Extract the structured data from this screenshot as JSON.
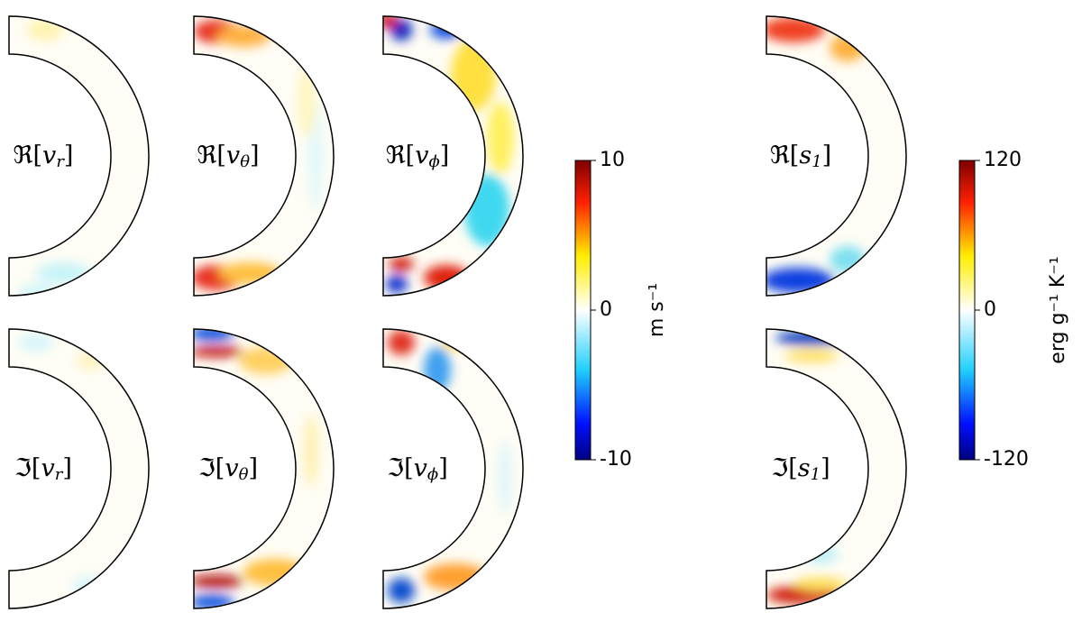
{
  "panels": [
    {
      "label": [
        "ℜ[",
        "v",
        "r",
        "]"
      ]
    },
    {
      "label": [
        "ℜ[",
        "v",
        "θ",
        "]"
      ]
    },
    {
      "label": [
        "ℜ[",
        "v",
        "ϕ",
        "]"
      ]
    },
    {
      "label": [
        "ℜ[",
        "s",
        "1",
        "]"
      ]
    },
    {
      "label": [
        "ℑ[",
        "v",
        "r",
        "]"
      ]
    },
    {
      "label": [
        "ℑ[",
        "v",
        "θ",
        "]"
      ]
    },
    {
      "label": [
        "ℑ[",
        "v",
        "ϕ",
        "]"
      ]
    },
    {
      "label": [
        "ℑ[",
        "s",
        "1",
        "]"
      ]
    }
  ],
  "colorbars": [
    {
      "label": "m s⁻¹",
      "lim": [
        -10,
        10
      ],
      "ticks": [
        -10,
        0,
        10
      ]
    },
    {
      "label": "erg g⁻¹ K⁻¹",
      "lim": [
        -120,
        120
      ],
      "ticks": [
        -120,
        0,
        120
      ]
    }
  ]
}
